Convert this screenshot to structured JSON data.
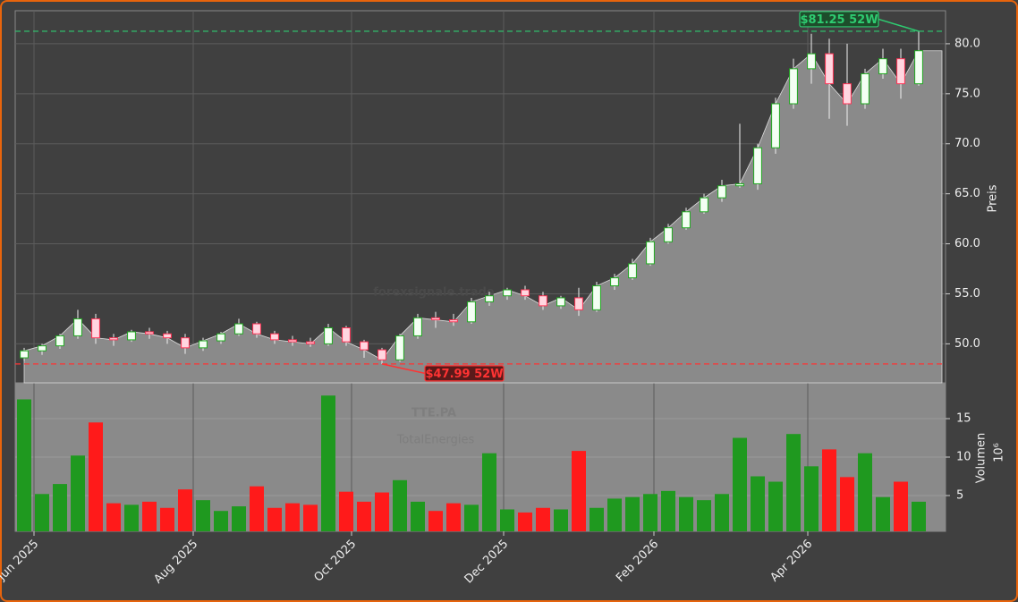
{
  "chart_data": {
    "type": "candlestick",
    "watermark": "forexsignale.trade",
    "ticker": "TTE.PA",
    "company": "TotalEnergies",
    "y_label": "Preis",
    "volume_label": "Volumen",
    "volume_unit": "10⁶",
    "grid": true,
    "up_color": "#22aa22",
    "down_color": "#ff3355",
    "area_color": "#8a8a8a",
    "volume_up_color": "#1f991f",
    "volume_down_color": "#ff1a1a",
    "categories": [
      null,
      null,
      null,
      null,
      null,
      null,
      null,
      null,
      null,
      null,
      null,
      null,
      null,
      null,
      null,
      null,
      null,
      null,
      null,
      null,
      null,
      null,
      null,
      null,
      null,
      null,
      null,
      null,
      null,
      null,
      null,
      null,
      null,
      null,
      null,
      null,
      null,
      null,
      null,
      null,
      null,
      null,
      null,
      null,
      null,
      null,
      null,
      null,
      null,
      null,
      null
    ],
    "open": [
      48.6,
      49.3,
      49.8,
      50.8,
      52.5,
      50.6,
      50.4,
      51.2,
      51.0,
      50.6,
      49.6,
      50.3,
      51.0,
      52.0,
      51.0,
      50.4,
      50.2,
      50.0,
      51.6,
      50.2,
      49.4,
      48.4,
      50.8,
      52.6,
      52.4,
      52.2,
      54.2,
      54.8,
      55.4,
      54.8,
      53.8,
      54.6,
      53.4,
      55.8,
      56.6,
      58.0,
      60.2,
      61.6,
      63.2,
      64.6,
      65.8,
      66.0,
      69.6,
      74.0,
      77.5,
      79.0,
      76.0,
      74.0,
      77.0,
      78.5,
      76.0
    ],
    "high": [
      49.6,
      50.0,
      51.0,
      53.4,
      53.0,
      51.0,
      51.4,
      51.6,
      51.3,
      51.0,
      50.6,
      51.2,
      52.5,
      52.2,
      51.3,
      50.8,
      50.6,
      52.0,
      51.8,
      50.4,
      49.6,
      51.0,
      53.0,
      53.2,
      53.0,
      54.6,
      55.2,
      55.6,
      55.8,
      55.2,
      54.8,
      55.6,
      56.2,
      57.0,
      58.5,
      60.6,
      62.0,
      63.6,
      65.0,
      66.4,
      72.0,
      70.0,
      74.6,
      78.5,
      81.0,
      80.5,
      80.0,
      77.5,
      79.5,
      79.5,
      81.25
    ],
    "low": [
      48.3,
      48.9,
      49.5,
      50.5,
      50.0,
      49.8,
      50.2,
      50.5,
      50.0,
      49.0,
      49.3,
      50.0,
      50.8,
      50.6,
      50.0,
      49.8,
      49.7,
      49.8,
      49.8,
      48.6,
      47.99,
      48.2,
      50.5,
      51.6,
      51.8,
      52.0,
      53.8,
      54.4,
      54.4,
      53.4,
      53.5,
      52.8,
      53.2,
      55.4,
      56.4,
      57.8,
      60.0,
      61.4,
      63.0,
      64.2,
      65.6,
      65.4,
      69.0,
      73.5,
      76.0,
      72.5,
      71.8,
      73.5,
      76.5,
      74.5,
      75.8
    ],
    "close": [
      49.3,
      49.8,
      50.8,
      52.5,
      50.6,
      50.4,
      51.2,
      51.0,
      50.6,
      49.6,
      50.3,
      51.0,
      52.0,
      51.0,
      50.4,
      50.2,
      50.0,
      51.6,
      50.2,
      49.4,
      48.4,
      50.8,
      52.6,
      52.4,
      52.2,
      54.2,
      54.8,
      55.4,
      54.8,
      53.8,
      54.6,
      53.4,
      55.8,
      56.6,
      58.0,
      60.2,
      61.6,
      63.2,
      64.6,
      65.8,
      66.0,
      69.6,
      74.0,
      77.5,
      79.0,
      76.0,
      74.0,
      77.0,
      78.5,
      76.0,
      79.3
    ],
    "volume": [
      17.5,
      5.2,
      6.5,
      10.2,
      14.5,
      4.0,
      3.8,
      4.2,
      3.4,
      5.8,
      4.4,
      3.0,
      3.6,
      6.2,
      3.4,
      4.0,
      3.8,
      18.0,
      5.5,
      4.2,
      5.4,
      7.0,
      4.2,
      3.0,
      4.0,
      3.8,
      10.5,
      3.2,
      2.8,
      3.4,
      3.2,
      10.8,
      3.4,
      4.6,
      4.8,
      5.2,
      5.6,
      4.8,
      4.4,
      5.2,
      12.5,
      7.5,
      6.8,
      13.0,
      8.8,
      11.0,
      7.4,
      10.5,
      4.8,
      6.8,
      4.2
    ],
    "xlim": [
      0,
      52
    ],
    "xticks": [
      {
        "value": 1.05,
        "label": "Jun 2025"
      },
      {
        "value": 9.95,
        "label": "Aug 2025"
      },
      {
        "value": 18.8,
        "label": "Oct 2025"
      },
      {
        "value": 27.3,
        "label": "Dec 2025"
      },
      {
        "value": 35.7,
        "label": "Feb 2026"
      },
      {
        "value": 44.3,
        "label": "Apr 2026"
      }
    ],
    "ylim": [
      46.1,
      83.3
    ],
    "yticks": [
      {
        "value": 50,
        "label": "50.0"
      },
      {
        "value": 55,
        "label": "55.0"
      },
      {
        "value": 60,
        "label": "60.0"
      },
      {
        "value": 65,
        "label": "65.0"
      },
      {
        "value": 70,
        "label": "70.0"
      },
      {
        "value": 75,
        "label": "75.0"
      },
      {
        "value": 80,
        "label": "80.0"
      }
    ],
    "volume_ylim": [
      0.35,
      19.65
    ],
    "volume_yticks": [
      5,
      10,
      15
    ],
    "annotations": [
      {
        "label": "$81.25 52W",
        "value": 81.25,
        "color": "#2ecc71",
        "kind": "high"
      },
      {
        "label": "$47.99 52W",
        "value": 47.99,
        "color": "#ff3333",
        "kind": "low"
      }
    ]
  }
}
